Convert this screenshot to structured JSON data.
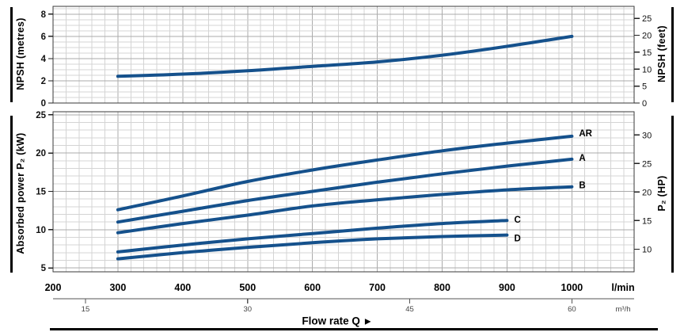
{
  "figure": {
    "curve_color": "#15518c",
    "grid_minor_color": "#d4d4d4",
    "grid_major_color": "#ababab",
    "border_color": "#3a3a3a",
    "tick_color": "#222222",
    "text_color": "#111111",
    "secondary_text_color": "#444444"
  },
  "axes": {
    "x_label": "Flow rate Q",
    "x_label_arrow": "▶",
    "x_unit_primary": "l/min",
    "x_unit_secondary": "m³/h"
  },
  "chart_data": [
    {
      "id": "npsh-panel",
      "type": "line",
      "title": "",
      "xlabel": "Flow rate Q (l/min)",
      "xlim": [
        200,
        1096
      ],
      "x_minor_step": 20,
      "x_major_ticks": [
        300,
        400,
        500,
        600,
        700,
        800,
        900,
        1000
      ],
      "ylabel": "NPSH (metres)",
      "ylim": [
        0,
        8.7
      ],
      "y_ticks": [
        0,
        2,
        4,
        6,
        8
      ],
      "y_minor_step": 0.5,
      "y2label": "NPSH (feet)",
      "y2_ticks": [
        0,
        5,
        10,
        15,
        20,
        25
      ],
      "y2_per_y": 3.2808,
      "series": [
        {
          "name": "NPSH",
          "label": "",
          "x": [
            300,
            400,
            500,
            600,
            700,
            800,
            900,
            1000
          ],
          "y": [
            2.4,
            2.6,
            2.9,
            3.3,
            3.7,
            4.3,
            5.1,
            6.0
          ]
        }
      ]
    },
    {
      "id": "power-panel",
      "type": "line",
      "title": "",
      "xlabel": "Flow rate Q (l/min)",
      "xlim": [
        200,
        1096
      ],
      "x_minor_step": 20,
      "x_major_ticks": [
        300,
        400,
        500,
        600,
        700,
        800,
        900,
        1000
      ],
      "x_labels": [
        200,
        300,
        400,
        500,
        600,
        700,
        800,
        900,
        1000
      ],
      "ylabel": "Absorbed power P₂ (kW)",
      "ylim": [
        4.5,
        25.4
      ],
      "y_ticks": [
        5,
        10,
        15,
        20,
        25
      ],
      "y_minor_step": 1,
      "y2label": "P₂ (HP)",
      "y2_ticks": [
        10,
        15,
        20,
        25,
        30
      ],
      "y2_per_y": 1.341,
      "series": [
        {
          "name": "AR",
          "label": "AR",
          "x": [
            300,
            400,
            500,
            600,
            700,
            800,
            900,
            1000
          ],
          "y": [
            12.6,
            14.4,
            16.3,
            17.8,
            19.1,
            20.3,
            21.3,
            22.2
          ]
        },
        {
          "name": "A",
          "label": "A",
          "x": [
            300,
            400,
            500,
            600,
            700,
            800,
            900,
            1000
          ],
          "y": [
            11.0,
            12.4,
            13.8,
            15.0,
            16.2,
            17.3,
            18.3,
            19.2
          ]
        },
        {
          "name": "B",
          "label": "B",
          "x": [
            300,
            400,
            500,
            600,
            700,
            800,
            900,
            1000
          ],
          "y": [
            9.6,
            10.8,
            11.9,
            13.1,
            13.9,
            14.6,
            15.2,
            15.6
          ]
        },
        {
          "name": "C",
          "label": "C",
          "x": [
            300,
            400,
            500,
            600,
            700,
            800,
            900
          ],
          "y": [
            7.1,
            8.0,
            8.8,
            9.5,
            10.2,
            10.8,
            11.2
          ]
        },
        {
          "name": "D",
          "label": "D",
          "x": [
            300,
            400,
            500,
            600,
            700,
            800,
            900
          ],
          "y": [
            6.2,
            7.0,
            7.7,
            8.3,
            8.8,
            9.1,
            9.3
          ]
        }
      ],
      "x_secondary": {
        "unit": "m³/h",
        "ticks": [
          {
            "label": 15,
            "q": 250
          },
          {
            "label": 30,
            "q": 500
          },
          {
            "label": 45,
            "q": 750
          },
          {
            "label": 60,
            "q": 1000
          }
        ]
      }
    }
  ]
}
